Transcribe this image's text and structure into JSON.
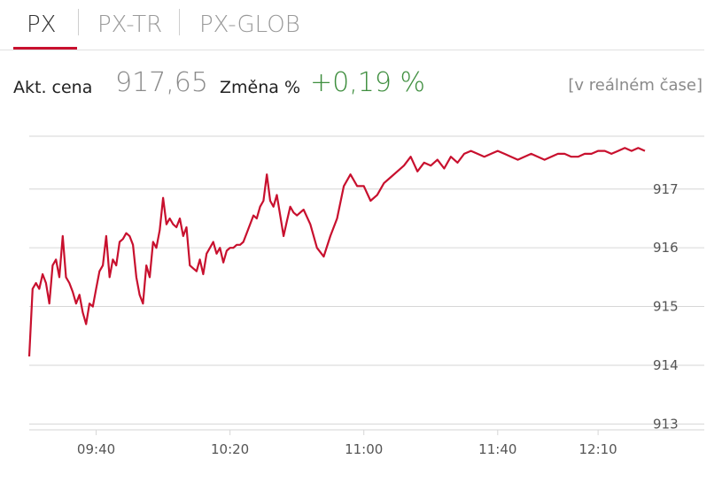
{
  "tabs": [
    {
      "label": "PX",
      "active": true
    },
    {
      "label": "PX-TR",
      "active": false
    },
    {
      "label": "PX-GLOB",
      "active": false
    }
  ],
  "quote": {
    "price_label": "Akt. cena",
    "price": "917,65",
    "change_label": "Změna %",
    "change": "+0,19 %",
    "realtime": "[v reálném čase]"
  },
  "colors": {
    "accent": "#c8102e",
    "positive": "#3e8e3e",
    "muted": "#8a8a8a"
  },
  "chart_data": {
    "type": "line",
    "title": "",
    "xlabel": "",
    "ylabel": "",
    "ylim": [
      912.9,
      917.9
    ],
    "y_ticks": [
      913,
      914,
      915,
      916,
      917
    ],
    "x_ticks": [
      "09:40",
      "10:20",
      "11:00",
      "11:40",
      "12:10"
    ],
    "x_range": [
      "09:20",
      "12:24"
    ],
    "grid": true,
    "series": [
      {
        "x": [
          "09:20",
          "09:21",
          "09:22",
          "09:23",
          "09:24",
          "09:25",
          "09:26",
          "09:27",
          "09:28",
          "09:29",
          "09:30",
          "09:31",
          "09:32",
          "09:33",
          "09:34",
          "09:35",
          "09:36",
          "09:37",
          "09:38",
          "09:39",
          "09:40",
          "09:41",
          "09:42",
          "09:43",
          "09:44",
          "09:45",
          "09:46",
          "09:47",
          "09:48",
          "09:49",
          "09:50",
          "09:51",
          "09:52",
          "09:53",
          "09:54",
          "09:55",
          "09:56",
          "09:57",
          "09:58",
          "09:59",
          "10:00",
          "10:01",
          "10:02",
          "10:03",
          "10:04",
          "10:05",
          "10:06",
          "10:07",
          "10:08",
          "10:09",
          "10:10",
          "10:11",
          "10:12",
          "10:13",
          "10:14",
          "10:15",
          "10:16",
          "10:17",
          "10:18",
          "10:19",
          "10:20",
          "10:21",
          "10:22",
          "10:23",
          "10:24",
          "10:25",
          "10:26",
          "10:27",
          "10:28",
          "10:29",
          "10:30",
          "10:31",
          "10:32",
          "10:33",
          "10:34",
          "10:35",
          "10:36",
          "10:37",
          "10:38",
          "10:39",
          "10:40",
          "10:42",
          "10:44",
          "10:46",
          "10:48",
          "10:50",
          "10:52",
          "10:54",
          "10:56",
          "10:58",
          "11:00",
          "11:02",
          "11:04",
          "11:06",
          "11:08",
          "11:10",
          "11:12",
          "11:14",
          "11:16",
          "11:18",
          "11:20",
          "11:22",
          "11:24",
          "11:26",
          "11:28",
          "11:30",
          "11:32",
          "11:34",
          "11:36",
          "11:38",
          "11:40",
          "11:42",
          "11:44",
          "11:46",
          "11:48",
          "11:50",
          "11:52",
          "11:54",
          "11:56",
          "11:58",
          "12:00",
          "12:02",
          "12:04",
          "12:06",
          "12:08",
          "12:10",
          "12:12",
          "12:14",
          "12:16",
          "12:18",
          "12:20",
          "12:22",
          "12:24"
        ],
        "values": [
          914.15,
          915.3,
          915.4,
          915.3,
          915.55,
          915.4,
          915.05,
          915.7,
          915.8,
          915.5,
          916.2,
          915.5,
          915.4,
          915.25,
          915.05,
          915.2,
          914.9,
          914.7,
          915.05,
          915.0,
          915.3,
          915.6,
          915.7,
          916.2,
          915.5,
          915.8,
          915.7,
          916.1,
          916.15,
          916.25,
          916.2,
          916.05,
          915.5,
          915.2,
          915.05,
          915.7,
          915.5,
          916.1,
          916.0,
          916.3,
          916.85,
          916.4,
          916.5,
          916.4,
          916.35,
          916.5,
          916.2,
          916.35,
          915.7,
          915.65,
          915.6,
          915.8,
          915.55,
          915.9,
          916.0,
          916.1,
          915.9,
          916.0,
          915.75,
          915.95,
          916.0,
          916.0,
          916.05,
          916.05,
          916.1,
          916.25,
          916.4,
          916.55,
          916.5,
          916.7,
          916.8,
          917.25,
          916.8,
          916.7,
          916.9,
          916.55,
          916.2,
          916.45,
          916.7,
          916.6,
          916.55,
          916.65,
          916.4,
          916.0,
          915.85,
          916.2,
          916.5,
          917.05,
          917.25,
          917.05,
          917.05,
          916.8,
          916.9,
          917.1,
          917.2,
          917.3,
          917.4,
          917.55,
          917.3,
          917.45,
          917.4,
          917.5,
          917.35,
          917.55,
          917.45,
          917.6,
          917.65,
          917.6,
          917.55,
          917.6,
          917.65,
          917.6,
          917.55,
          917.5,
          917.55,
          917.6,
          917.55,
          917.5,
          917.55,
          917.6,
          917.6,
          917.55,
          917.55,
          917.6,
          917.6,
          917.65,
          917.65,
          917.6,
          917.65,
          917.7,
          917.65,
          917.7,
          917.65
        ]
      }
    ]
  }
}
